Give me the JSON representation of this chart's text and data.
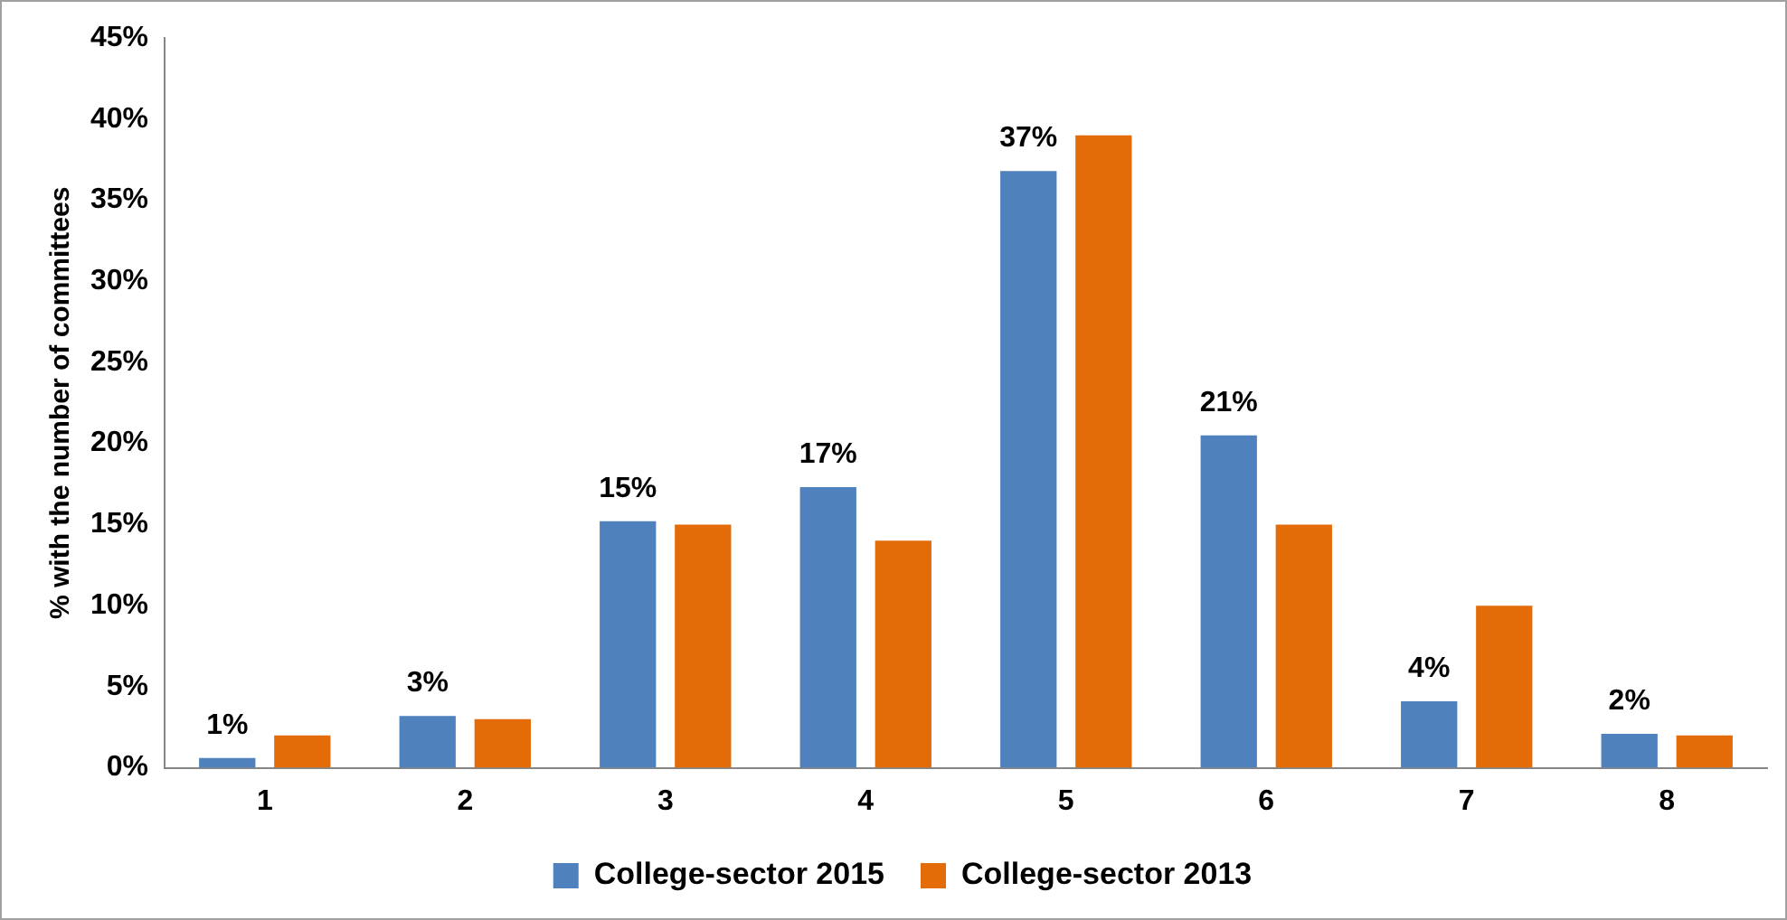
{
  "chart_data": {
    "type": "bar",
    "ylabel": "% with the number of committees",
    "categories": [
      "1",
      "2",
      "3",
      "4",
      "5",
      "6",
      "7",
      "8"
    ],
    "series": [
      {
        "name": "College-sector 2015",
        "color": "#4f81bd",
        "values": [
          0.6,
          3.2,
          15.2,
          17.3,
          36.8,
          20.5,
          4.1,
          2.1
        ],
        "value_labels": [
          "1%",
          "3%",
          "15%",
          "17%",
          "37%",
          "21%",
          "4%",
          "2%"
        ]
      },
      {
        "name": "College-sector 2013",
        "color": "#e36c09",
        "values": [
          2,
          3,
          15,
          14,
          39,
          15,
          10,
          2
        ]
      }
    ],
    "ylim": [
      0,
      45
    ],
    "yticks": [
      {
        "value": 0,
        "label": "0%"
      },
      {
        "value": 5,
        "label": "5%"
      },
      {
        "value": 10,
        "label": "10%"
      },
      {
        "value": 15,
        "label": "15%"
      },
      {
        "value": 20,
        "label": "20%"
      },
      {
        "value": 25,
        "label": "25%"
      },
      {
        "value": 30,
        "label": "30%"
      },
      {
        "value": 35,
        "label": "35%"
      },
      {
        "value": 40,
        "label": "40%"
      },
      {
        "value": 45,
        "label": "45%"
      }
    ],
    "grid": false,
    "legend": "bottom"
  }
}
